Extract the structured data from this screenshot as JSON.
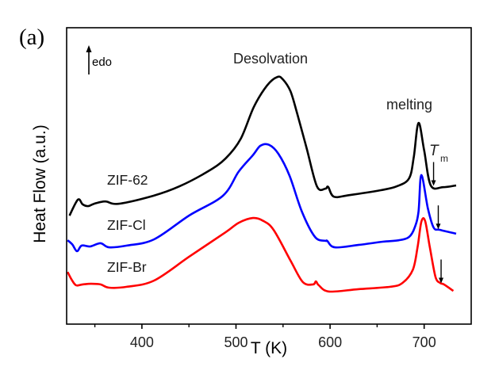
{
  "panel_label": "(a)",
  "chart_data": {
    "type": "line",
    "title": "",
    "xlabel": "T (K)",
    "ylabel": "Heat Flow (a.u.)",
    "xlim": [
      320,
      750
    ],
    "ylim": [
      0,
      100
    ],
    "xticks": [
      400,
      500,
      600,
      700
    ],
    "xtick_labels": [
      "400",
      "500",
      "600",
      "700"
    ],
    "minor_xticks": [
      350,
      450,
      550,
      650
    ],
    "yticks": [],
    "grid": false,
    "legend": "none",
    "annotations": {
      "direction_label": "edo",
      "desolvation": "Desolvation",
      "melting": "melting",
      "tm_symbol": "T",
      "tm_subscript": "m"
    },
    "tm_markers": [
      {
        "series": "ZIF-62",
        "T": 710
      },
      {
        "series": "ZIF-Cl",
        "T": 715
      },
      {
        "series": "ZIF-Br",
        "T": 718
      }
    ],
    "series": [
      {
        "name": "ZIF-62",
        "color": "#000000",
        "x": [
          323,
          332,
          337,
          343,
          349,
          361,
          375,
          412,
          440,
          470,
          489,
          505,
          519,
          533,
          544,
          550,
          558,
          565,
          575,
          586,
          595,
          598,
          604,
          620,
          654,
          671,
          684,
          689,
          694,
          700,
          707,
          720,
          734
        ],
        "y": [
          36.6,
          42.0,
          40.4,
          39.8,
          40.6,
          41.4,
          40.6,
          43.3,
          46.5,
          51.5,
          55.9,
          62.5,
          73.3,
          80.5,
          83.4,
          82.5,
          78.5,
          71.1,
          59.5,
          46.5,
          45.7,
          46.3,
          43.0,
          43.5,
          45.2,
          46.5,
          49.2,
          56.5,
          67.9,
          58.6,
          46.8,
          46.2,
          46.8
        ]
      },
      {
        "name": "ZIF-Cl",
        "color": "#0000ff",
        "x": [
          321,
          326,
          331,
          336,
          345,
          356,
          365,
          384,
          413,
          450,
          486,
          503,
          518,
          526,
          535,
          545,
          557,
          570,
          584,
          595,
          597,
          605,
          630,
          656,
          673,
          684,
          690,
          694,
          697,
          704,
          710,
          717,
          734
        ],
        "y": [
          28.3,
          26.9,
          24.6,
          26.5,
          26.2,
          27.3,
          25.9,
          26.5,
          28.6,
          36.6,
          43.3,
          51.5,
          57.0,
          60.2,
          60.5,
          57.5,
          50.0,
          38.0,
          29.4,
          28.1,
          28.1,
          25.9,
          26.7,
          27.8,
          28.3,
          29.4,
          32.6,
          38.0,
          50.3,
          39.0,
          32.6,
          31.8,
          30.5
        ]
      },
      {
        "name": "ZIF-Br",
        "color": "#ff0000",
        "x": [
          321,
          325,
          330,
          337,
          346,
          356,
          365,
          384,
          413,
          450,
          489,
          503,
          518,
          529,
          540,
          558,
          571,
          582,
          585,
          588,
          599,
          630,
          664,
          677,
          688,
          693,
          697,
          701,
          706,
          712,
          717,
          721,
          731
        ],
        "y": [
          17.6,
          15.2,
          13.1,
          13.4,
          13.6,
          13.4,
          12.3,
          12.6,
          14.7,
          22.7,
          31.0,
          34.2,
          35.8,
          34.8,
          31.8,
          21.4,
          14.2,
          13.4,
          14.4,
          13.1,
          11.0,
          11.8,
          12.6,
          13.9,
          18.4,
          26.0,
          34.5,
          34.8,
          26.0,
          16.0,
          13.9,
          13.4,
          11.2
        ]
      }
    ],
    "series_labels": [
      "ZIF-62",
      "ZIF-Cl",
      "ZIF-Br"
    ]
  }
}
